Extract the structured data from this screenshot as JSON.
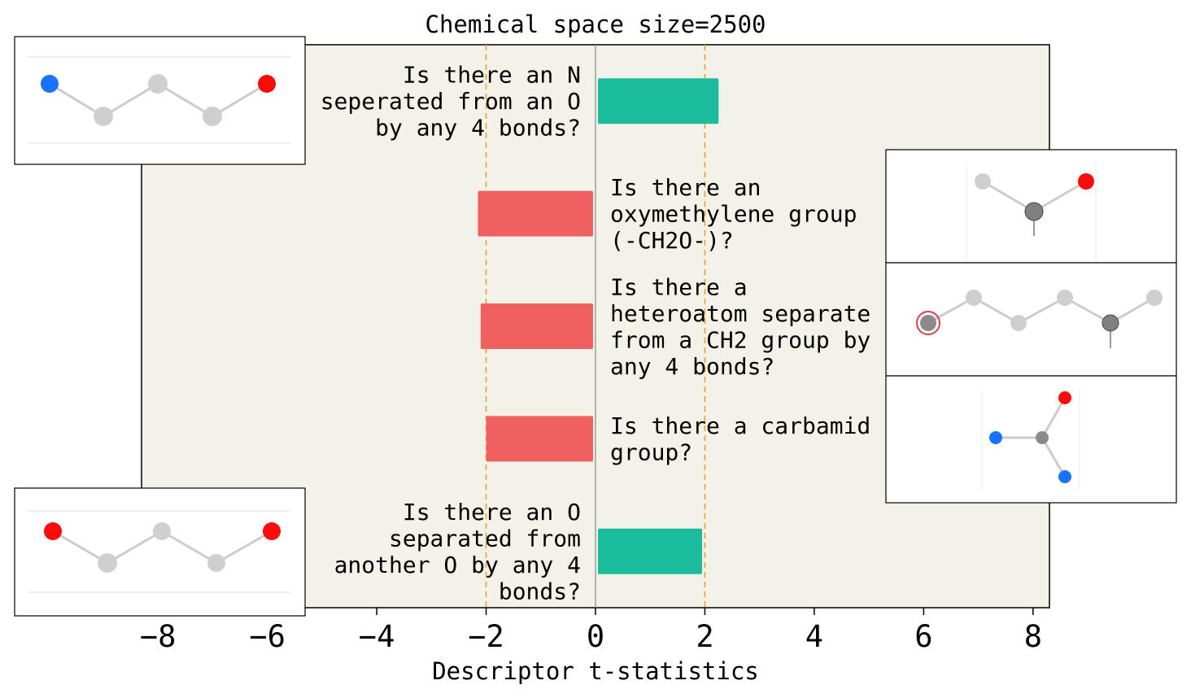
{
  "chart_data": {
    "type": "bar",
    "orientation": "horizontal",
    "title": "Chemical space size=2500",
    "xlabel": "Descriptor t-statistics",
    "ylabel": "",
    "xlim": [
      -8.3,
      8.3
    ],
    "xticks": [
      -8,
      -6,
      -4,
      -2,
      0,
      2,
      4,
      6,
      8
    ],
    "xtick_labels": [
      "−8",
      "−6",
      "−4",
      "−2",
      "0",
      "2",
      "4",
      "6",
      "8"
    ],
    "reference_lines": [
      -2,
      2
    ],
    "grid": false,
    "categories": [
      [
        "Is there an N",
        "seperated from an O",
        "by any 4 bonds?"
      ],
      [
        "Is there an",
        "oxymethylene group",
        "(-CH2O-)?"
      ],
      [
        "Is there a",
        "heteroatom separate",
        "from a CH2 group by",
        "any 4 bonds?"
      ],
      [
        "Is there a carbamid",
        "group?"
      ],
      [
        "Is there an O",
        "separated from",
        "another O by any 4",
        "bonds?"
      ]
    ],
    "values": [
      2.25,
      -2.15,
      -2.1,
      -2.0,
      1.95
    ],
    "colors": {
      "positive": "#1abc9c",
      "negative": "#f06060",
      "plot_bg": "#f3f2e8",
      "ref_line": "#f0a030"
    }
  }
}
